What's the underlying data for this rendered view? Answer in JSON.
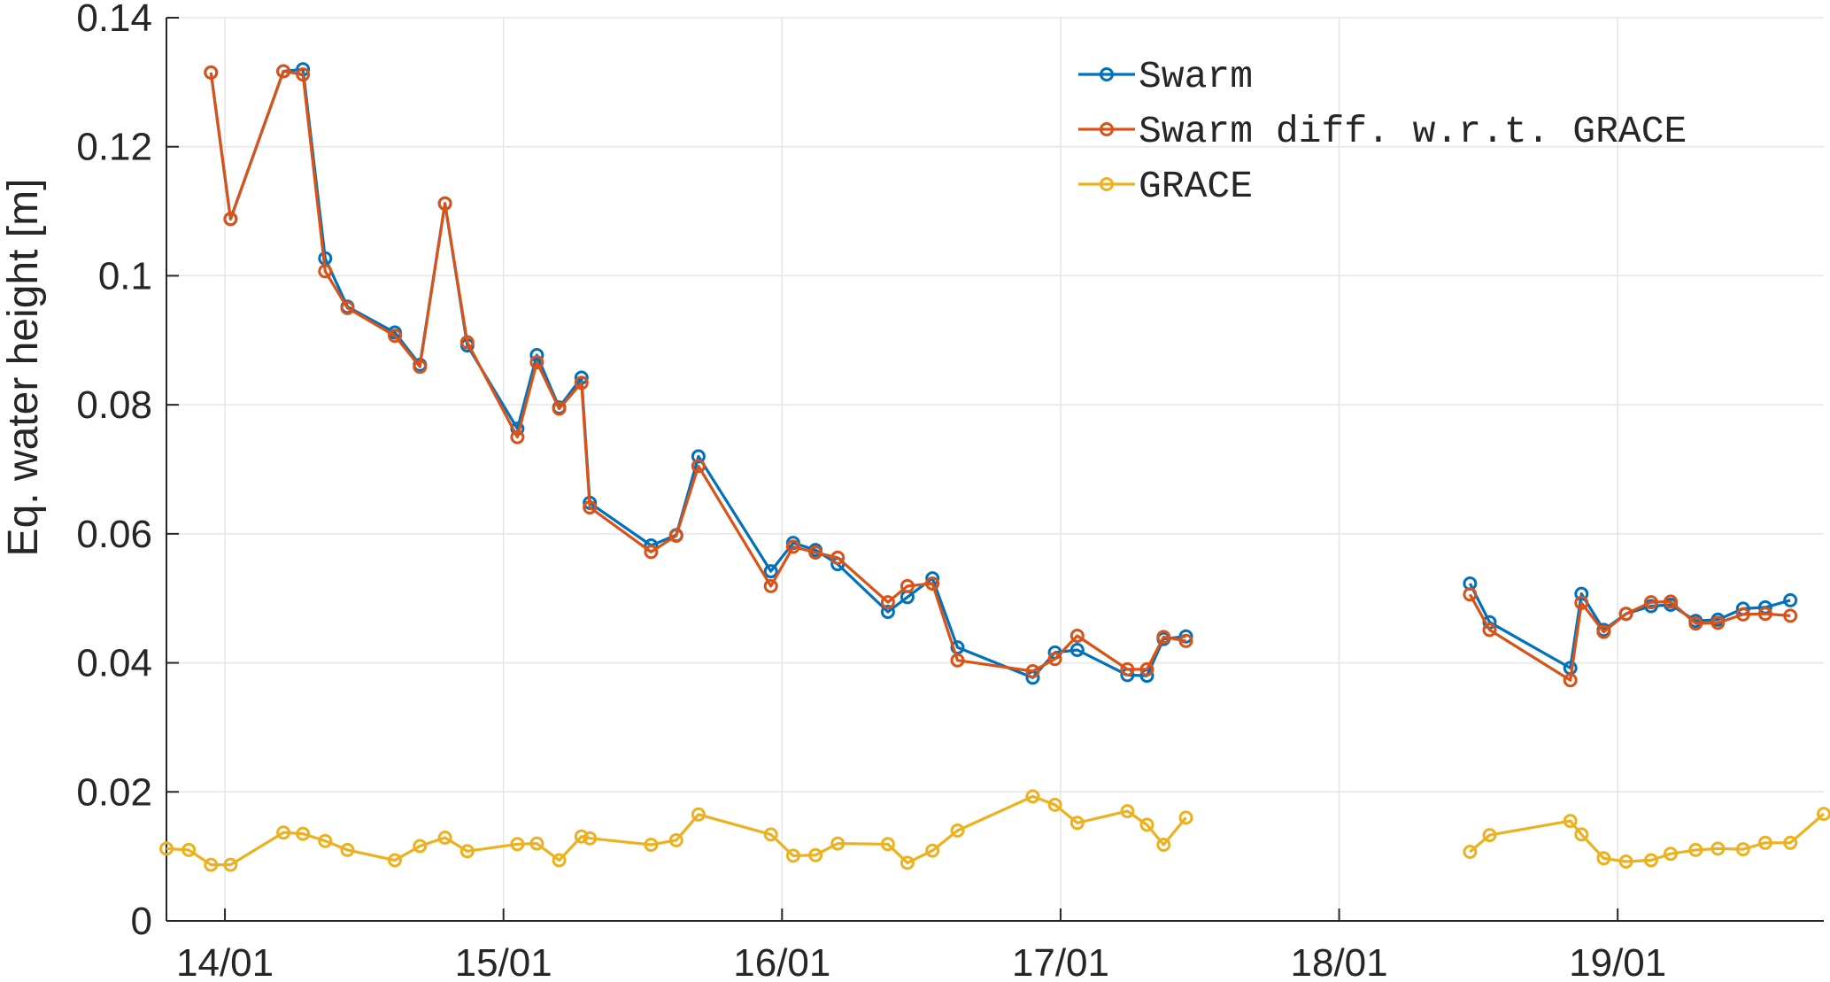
{
  "chart_data": {
    "type": "line",
    "title": "",
    "xlabel": "",
    "ylabel": "Eq. water height [m]",
    "x_units": "days (date axis, dd/mm)",
    "xlim": [
      13.79,
      19.74
    ],
    "ylim": [
      0,
      0.14
    ],
    "x_ticks": [
      {
        "value": 14,
        "label": "14/01"
      },
      {
        "value": 15,
        "label": "15/01"
      },
      {
        "value": 16,
        "label": "16/01"
      },
      {
        "value": 17,
        "label": "17/01"
      },
      {
        "value": 18,
        "label": "18/01"
      },
      {
        "value": 19,
        "label": "19/01"
      }
    ],
    "y_ticks": [
      {
        "value": 0,
        "label": "0"
      },
      {
        "value": 0.02,
        "label": "0.02"
      },
      {
        "value": 0.04,
        "label": "0.04"
      },
      {
        "value": 0.06,
        "label": "0.06"
      },
      {
        "value": 0.08,
        "label": "0.08"
      },
      {
        "value": 0.1,
        "label": "0.1"
      },
      {
        "value": 0.12,
        "label": "0.12"
      },
      {
        "value": 0.14,
        "label": "0.14"
      }
    ],
    "grid": true,
    "legend_position": "top-right",
    "series": [
      {
        "name": "Swarm",
        "color": "#0072BD",
        "segments": [
          [
            [
              13.95,
              0.1315
            ],
            [
              14.02,
              0.1088
            ],
            [
              14.21,
              0.1317
            ],
            [
              14.28,
              0.132
            ],
            [
              14.36,
              0.1027
            ],
            [
              14.44,
              0.0952
            ],
            [
              14.61,
              0.0912
            ],
            [
              14.7,
              0.0862
            ],
            [
              14.79,
              0.1112
            ],
            [
              14.87,
              0.0892
            ],
            [
              15.05,
              0.0763
            ],
            [
              15.12,
              0.0877
            ],
            [
              15.2,
              0.0796
            ],
            [
              15.28,
              0.0842
            ],
            [
              15.31,
              0.0648
            ],
            [
              15.53,
              0.0582
            ],
            [
              15.62,
              0.0598
            ],
            [
              15.7,
              0.072
            ],
            [
              15.96,
              0.0542
            ],
            [
              16.04,
              0.0586
            ],
            [
              16.12,
              0.0575
            ],
            [
              16.2,
              0.0553
            ],
            [
              16.38,
              0.0479
            ],
            [
              16.45,
              0.0502
            ],
            [
              16.54,
              0.0531
            ],
            [
              16.63,
              0.0424
            ],
            [
              16.9,
              0.0377
            ],
            [
              16.98,
              0.0416
            ],
            [
              17.06,
              0.042
            ],
            [
              17.24,
              0.0381
            ],
            [
              17.31,
              0.038
            ],
            [
              17.37,
              0.0437
            ],
            [
              17.45,
              0.0441
            ]
          ],
          [
            [
              18.47,
              0.0523
            ],
            [
              18.54,
              0.0463
            ],
            [
              18.83,
              0.0392
            ],
            [
              18.87,
              0.0507
            ],
            [
              18.95,
              0.0451
            ],
            [
              19.03,
              0.0476
            ],
            [
              19.12,
              0.0488
            ],
            [
              19.19,
              0.049
            ],
            [
              19.28,
              0.0465
            ],
            [
              19.36,
              0.0467
            ],
            [
              19.45,
              0.0484
            ],
            [
              19.53,
              0.0486
            ],
            [
              19.62,
              0.0497
            ]
          ]
        ]
      },
      {
        "name": "Swarm diff. w.r.t. GRACE",
        "color": "#D95319",
        "segments": [
          [
            [
              13.95,
              0.1315
            ],
            [
              14.02,
              0.1088
            ],
            [
              14.21,
              0.1317
            ],
            [
              14.28,
              0.1312
            ],
            [
              14.36,
              0.1007
            ],
            [
              14.44,
              0.095
            ],
            [
              14.61,
              0.0907
            ],
            [
              14.7,
              0.0859
            ],
            [
              14.79,
              0.1112
            ],
            [
              14.87,
              0.0897
            ],
            [
              15.05,
              0.075
            ],
            [
              15.12,
              0.0866
            ],
            [
              15.2,
              0.0794
            ],
            [
              15.28,
              0.0834
            ],
            [
              15.31,
              0.0641
            ],
            [
              15.53,
              0.0572
            ],
            [
              15.62,
              0.0597
            ],
            [
              15.7,
              0.0705
            ],
            [
              15.96,
              0.0519
            ],
            [
              16.04,
              0.058
            ],
            [
              16.12,
              0.0571
            ],
            [
              16.2,
              0.0563
            ],
            [
              16.38,
              0.0494
            ],
            [
              16.45,
              0.0519
            ],
            [
              16.54,
              0.0523
            ],
            [
              16.63,
              0.0404
            ],
            [
              16.9,
              0.0387
            ],
            [
              16.98,
              0.0406
            ],
            [
              17.06,
              0.0442
            ],
            [
              17.24,
              0.039
            ],
            [
              17.31,
              0.039
            ],
            [
              17.37,
              0.044
            ],
            [
              17.45,
              0.0434
            ]
          ],
          [
            [
              18.47,
              0.0506
            ],
            [
              18.54,
              0.0451
            ],
            [
              18.83,
              0.0373
            ],
            [
              18.87,
              0.0493
            ],
            [
              18.95,
              0.0448
            ],
            [
              19.03,
              0.0476
            ],
            [
              19.12,
              0.0494
            ],
            [
              19.19,
              0.0495
            ],
            [
              19.28,
              0.0461
            ],
            [
              19.36,
              0.0462
            ],
            [
              19.45,
              0.0475
            ],
            [
              19.53,
              0.0476
            ],
            [
              19.62,
              0.0473
            ]
          ]
        ]
      },
      {
        "name": "GRACE",
        "color": "#EDB120",
        "segments": [
          [
            [
              13.79,
              0.0112
            ],
            [
              13.87,
              0.011
            ],
            [
              13.95,
              0.0087
            ],
            [
              14.02,
              0.0087
            ],
            [
              14.21,
              0.0137
            ],
            [
              14.28,
              0.0135
            ],
            [
              14.36,
              0.0124
            ],
            [
              14.44,
              0.011
            ],
            [
              14.61,
              0.0094
            ],
            [
              14.7,
              0.0116
            ],
            [
              14.79,
              0.0129
            ],
            [
              14.87,
              0.0108
            ],
            [
              15.05,
              0.0119
            ],
            [
              15.12,
              0.012
            ],
            [
              15.2,
              0.0094
            ],
            [
              15.28,
              0.0131
            ],
            [
              15.31,
              0.0128
            ],
            [
              15.53,
              0.0118
            ],
            [
              15.62,
              0.0125
            ],
            [
              15.7,
              0.0165
            ],
            [
              15.96,
              0.0134
            ],
            [
              16.04,
              0.0101
            ],
            [
              16.12,
              0.0102
            ],
            [
              16.2,
              0.012
            ],
            [
              16.38,
              0.0119
            ],
            [
              16.45,
              0.009
            ],
            [
              16.54,
              0.0109
            ],
            [
              16.63,
              0.014
            ],
            [
              16.9,
              0.0193
            ],
            [
              16.98,
              0.018
            ],
            [
              17.06,
              0.0152
            ],
            [
              17.24,
              0.017
            ],
            [
              17.31,
              0.0149
            ],
            [
              17.37,
              0.0118
            ],
            [
              17.45,
              0.016
            ]
          ],
          [
            [
              18.47,
              0.0107
            ],
            [
              18.54,
              0.0133
            ],
            [
              18.83,
              0.0155
            ],
            [
              18.87,
              0.0134
            ],
            [
              18.95,
              0.0097
            ],
            [
              19.03,
              0.0092
            ],
            [
              19.12,
              0.0094
            ],
            [
              19.19,
              0.0104
            ],
            [
              19.28,
              0.011
            ],
            [
              19.36,
              0.0112
            ],
            [
              19.45,
              0.0111
            ],
            [
              19.53,
              0.0121
            ],
            [
              19.62,
              0.0121
            ],
            [
              19.74,
              0.0166
            ]
          ]
        ]
      }
    ]
  }
}
